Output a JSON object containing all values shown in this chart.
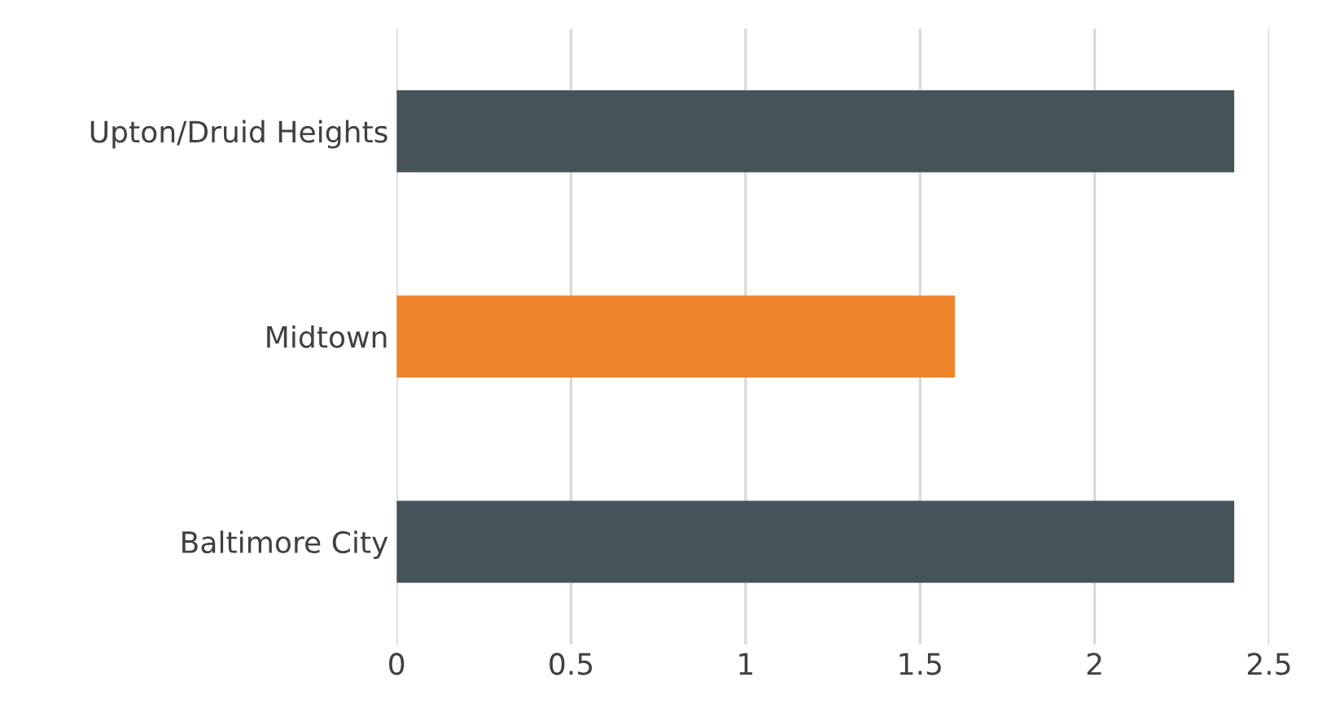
{
  "chart_data": {
    "type": "bar",
    "orientation": "horizontal",
    "categories": [
      "Upton/Druid Heights",
      "Midtown",
      "Baltimore City"
    ],
    "values": [
      2.4,
      1.6,
      2.4
    ],
    "colors": [
      "#465359",
      "#ed8429",
      "#465359"
    ],
    "xlim": [
      0,
      2.5
    ],
    "xticks": [
      0,
      0.5,
      1,
      1.5,
      2,
      2.5
    ],
    "grid": "x"
  }
}
